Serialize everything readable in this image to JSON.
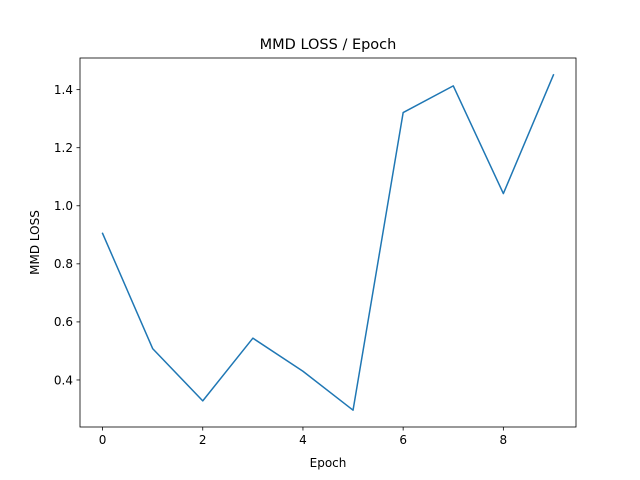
{
  "chart_data": {
    "type": "line",
    "title": "MMD LOSS / Epoch",
    "xlabel": "Epoch",
    "ylabel": "MMD LOSS",
    "x": [
      0,
      1,
      2,
      3,
      4,
      5,
      6,
      7,
      8,
      9
    ],
    "series": [
      {
        "values": [
          0.905,
          0.508,
          0.328,
          0.544,
          0.43,
          0.296,
          1.321,
          1.413,
          1.042,
          1.451
        ]
      }
    ],
    "xlim": [
      -0.45,
      9.45
    ],
    "ylim": [
      0.238,
      1.509
    ],
    "xticks": [
      0,
      2,
      4,
      6,
      8
    ],
    "yticks": [
      0.4,
      0.6,
      0.8,
      1.0,
      1.2,
      1.4
    ],
    "xtick_labels": [
      "0",
      "2",
      "4",
      "6",
      "8"
    ],
    "ytick_labels": [
      "0.4",
      "0.6",
      "0.8",
      "1.0",
      "1.2",
      "1.4"
    ],
    "grid": false,
    "colors": {
      "line": "#1f77b4",
      "axes": "#000000"
    }
  }
}
